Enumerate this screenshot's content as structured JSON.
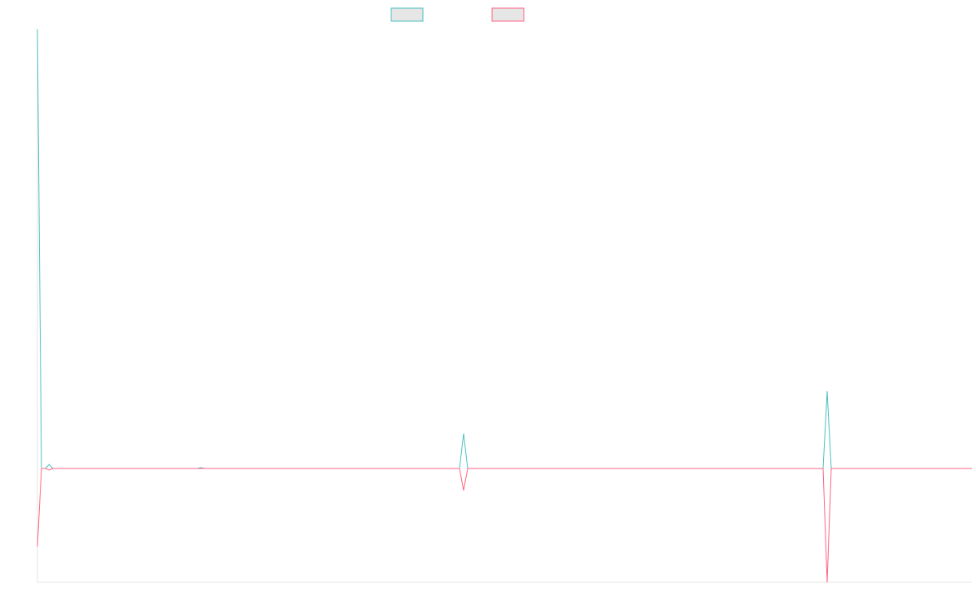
{
  "chart_data": {
    "type": "line",
    "x": [
      0,
      5,
      10,
      14.5,
      19,
      196,
      201,
      206,
      519,
      524,
      529,
      966,
      971,
      976,
      1149
    ],
    "series": [
      {
        "color": "#4bc0c0",
        "values": [
          540,
          0,
          0,
          5,
          0,
          0,
          1,
          0,
          0,
          43,
          0,
          0,
          95,
          0,
          0
        ]
      },
      {
        "color": "#ff6384",
        "values": [
          -96,
          0,
          0,
          -2,
          0,
          0,
          0,
          0,
          0,
          -27,
          0,
          0,
          -140,
          0,
          0
        ]
      }
    ],
    "xlim": [
      0,
      1149
    ],
    "ylim": [
      -140,
      540
    ]
  }
}
